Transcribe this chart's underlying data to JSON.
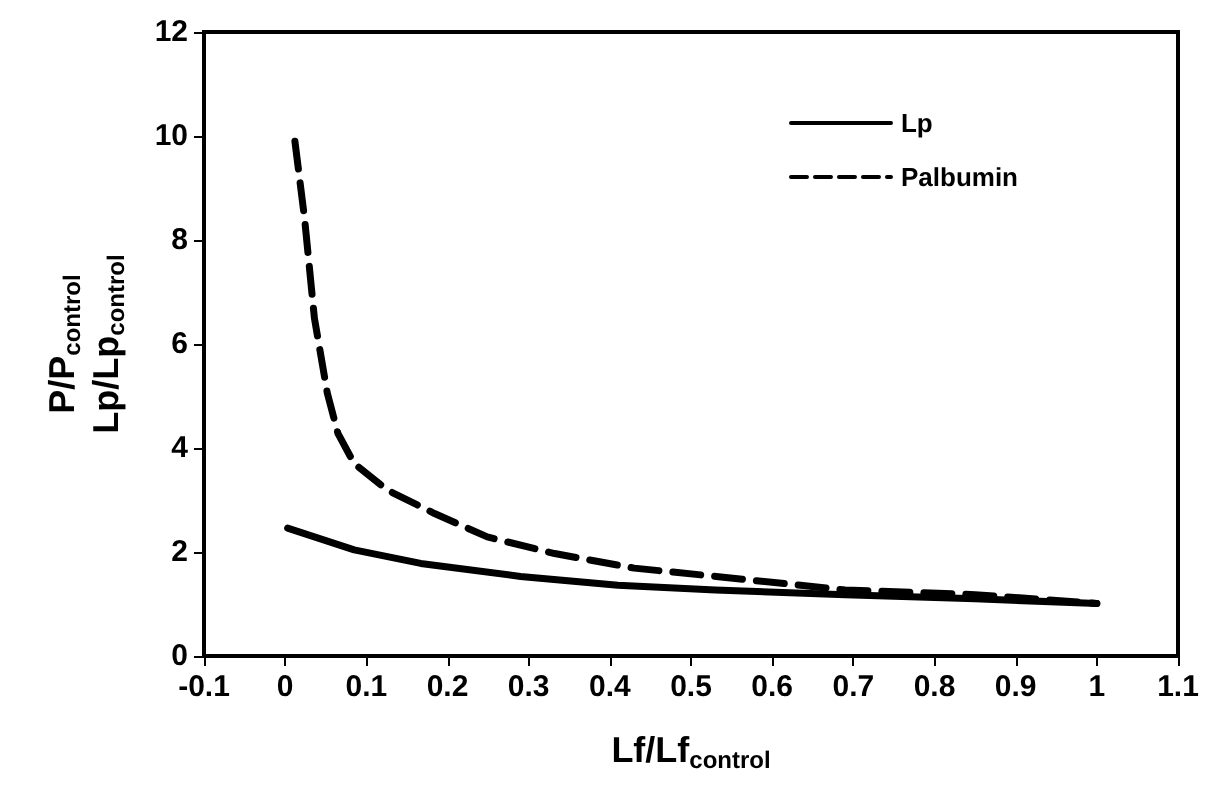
{
  "chart_data": {
    "type": "line",
    "xlabel": "Lf/Lf$_{control}$",
    "ylabel": "P/P$_{control}$\nLp/Lp$_{control}$",
    "xlim": [
      -0.1,
      1.1
    ],
    "xticks": [
      -0.1,
      0,
      0.1,
      0.2,
      0.3,
      0.4,
      0.5,
      0.6,
      0.7,
      0.8,
      0.9,
      1,
      1.1
    ],
    "ylim": [
      0,
      12
    ],
    "yticks": [
      0,
      2,
      4,
      6,
      8,
      10,
      12
    ],
    "grid": false,
    "legend": "top right",
    "marker": "none",
    "series": [
      {
        "name": "Lp",
        "color": "#000000",
        "line_style": "solid",
        "x": [
          0.003,
          0.085,
          0.167,
          0.29,
          0.41,
          0.53,
          0.69,
          0.85,
          1.0
        ],
        "values": [
          2.46,
          2.04,
          1.78,
          1.53,
          1.36,
          1.27,
          1.18,
          1.1,
          1.01
        ]
      },
      {
        "name": "Palbumin",
        "color": "#000000",
        "line_style": "dashed",
        "x": [
          0.012,
          0.024,
          0.036,
          0.052,
          0.065,
          0.085,
          0.126,
          0.184,
          0.249,
          0.332,
          0.43,
          0.531,
          0.69,
          0.85,
          1.0
        ],
        "values": [
          9.9,
          8.4,
          6.5,
          5.05,
          4.28,
          3.7,
          3.19,
          2.74,
          2.29,
          1.97,
          1.69,
          1.53,
          1.27,
          1.18,
          1.01
        ]
      }
    ]
  }
}
